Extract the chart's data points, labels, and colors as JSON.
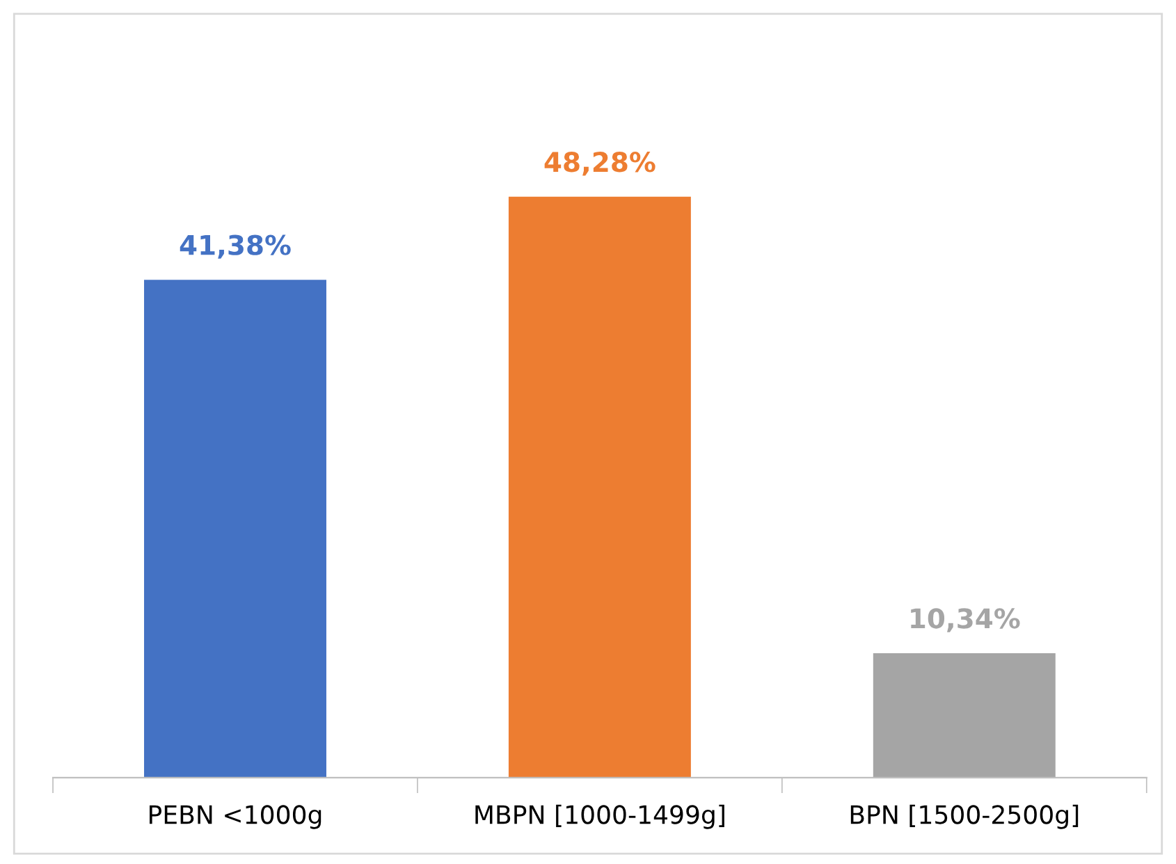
{
  "chart_data": {
    "type": "bar",
    "categories": [
      "PEBN <1000g",
      "MBPN [1000-1499g]",
      "BPN [1500-2500g]"
    ],
    "values": [
      41.38,
      48.28,
      10.34
    ],
    "colors": [
      "#4472c4",
      "#ed7d31",
      "#a5a5a5"
    ],
    "value_labels": [
      "41,38%",
      "48,28%",
      "10,34%"
    ],
    "grid": false,
    "legend": false
  }
}
